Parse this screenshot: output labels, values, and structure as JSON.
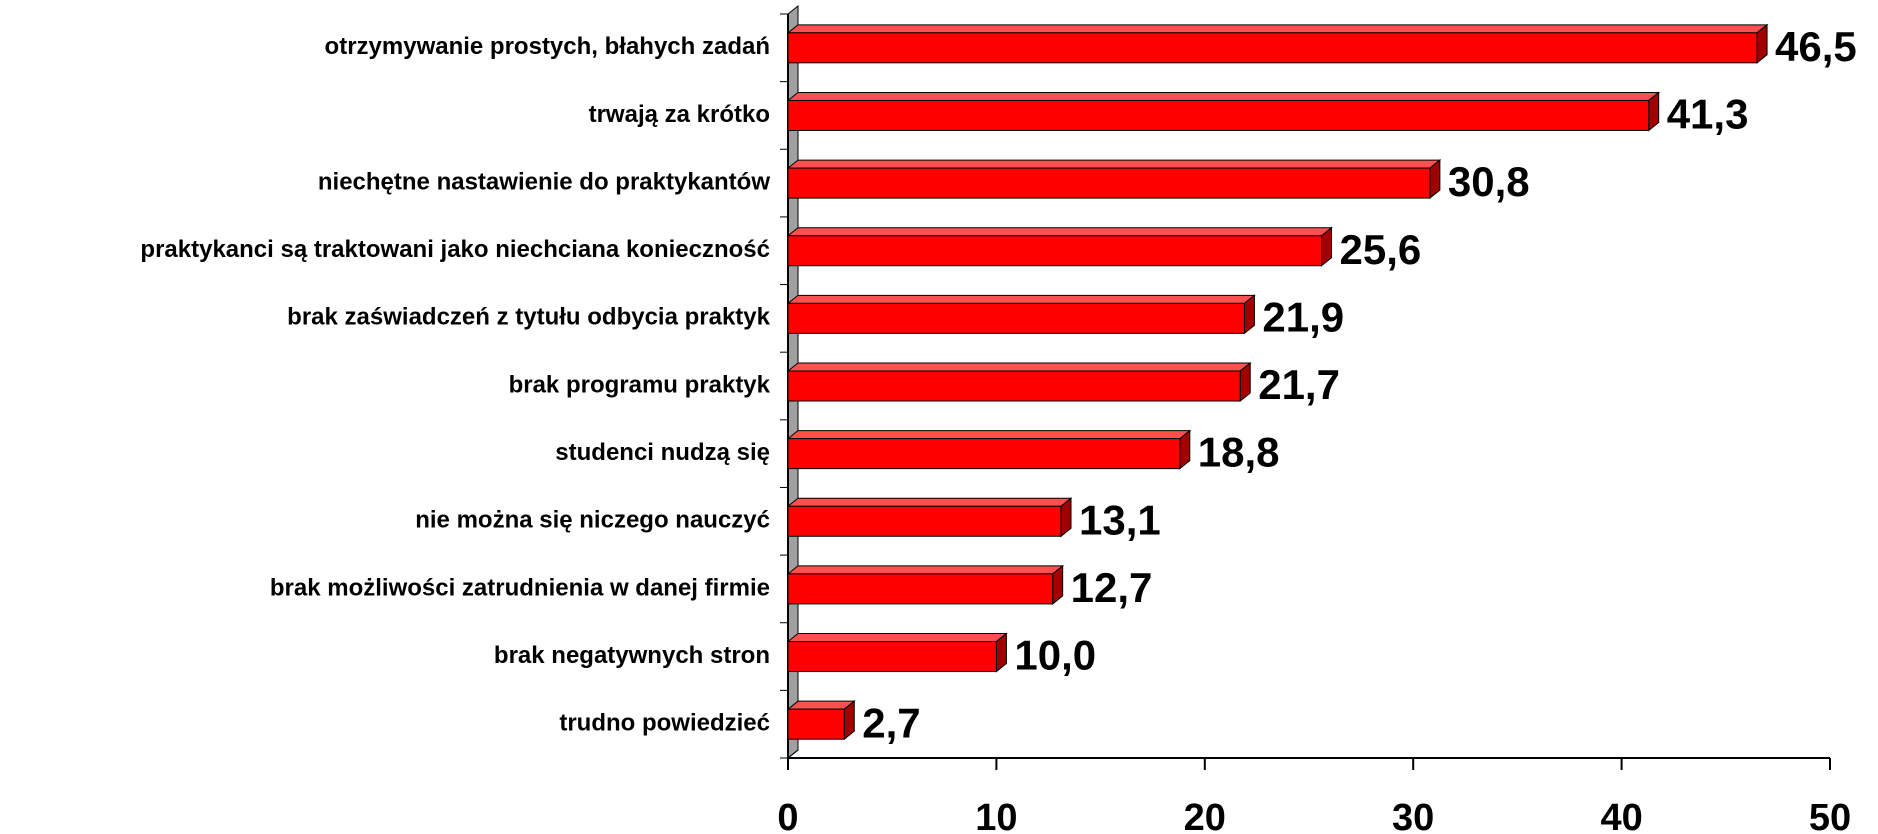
{
  "chart_data": {
    "type": "bar",
    "orientation": "horizontal",
    "categories": [
      "otrzymywanie prostych, błahych zadań",
      "trwają za krótko",
      "niechętne nastawienie do praktykantów",
      "praktykanci są traktowani jako niechciana konieczność",
      "brak zaświadczeń z tytułu odbycia praktyk",
      "brak programu praktyk",
      "studenci nudzą się",
      "nie można się niczego nauczyć",
      "brak możliwości zatrudnienia w danej firmie",
      "brak negatywnych stron",
      "trudno powiedzieć"
    ],
    "values": [
      46.5,
      41.3,
      30.8,
      25.6,
      21.9,
      21.7,
      18.8,
      13.1,
      12.7,
      10.0,
      2.7
    ],
    "value_labels": [
      "46,5",
      "41,3",
      "30,8",
      "25,6",
      "21,9",
      "21,7",
      "18,8",
      "13,1",
      "12,7",
      "10,0",
      "2,7"
    ],
    "color": "#ff0000",
    "xlim": [
      0,
      50
    ],
    "xticks": [
      0,
      10,
      20,
      30,
      40,
      50
    ]
  }
}
